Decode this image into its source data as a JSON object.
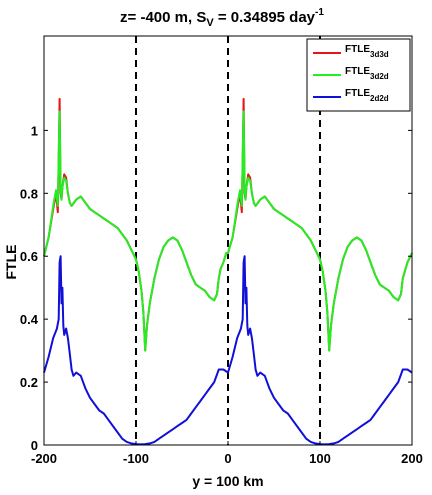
{
  "chart_data": {
    "type": "line",
    "title_main": "z= -400 m, S",
    "title_sub": "V",
    "title_rest": " = 0.34895 day",
    "title_sup": "-1",
    "xlabel": "y = 100 km",
    "ylabel": "FTLE",
    "xlim": [
      -200,
      200
    ],
    "ylim": [
      0,
      1.3
    ],
    "xticks": [
      -200,
      -100,
      0,
      100,
      200
    ],
    "yticks": [
      0,
      0.2,
      0.4,
      0.6,
      0.8,
      1
    ],
    "xtick_labels": [
      "-200",
      "-100",
      "0",
      "100",
      "200"
    ],
    "ytick_labels": [
      "0",
      "0.2",
      "0.4",
      "0.6",
      "0.8",
      "1"
    ],
    "vlines": [
      -100,
      0,
      100
    ],
    "grid": false,
    "legend_position": "top-right",
    "series": [
      {
        "name": "FTLE",
        "name_sub": "3d3d",
        "color": "#e8141c",
        "x": [
          -200,
          -195,
          -190,
          -187,
          -185,
          -184,
          -183,
          -182,
          -181,
          -180,
          -178,
          -176,
          -174,
          -172,
          -170,
          -165,
          -160,
          -155,
          -150,
          -145,
          -140,
          -135,
          -130,
          -125,
          -120,
          -115,
          -110,
          -105,
          -100,
          -97,
          -94,
          -92,
          -90,
          -88,
          -85,
          -80,
          -75,
          -70,
          -65,
          -60,
          -55,
          -50,
          -45,
          -40,
          -35,
          -30,
          -25,
          -20,
          -15,
          -12,
          -10,
          -8,
          -5,
          -2,
          0,
          2,
          5,
          10,
          13,
          15,
          16,
          17,
          18,
          19,
          20,
          22,
          24,
          26,
          28,
          30,
          35,
          40,
          45,
          50,
          55,
          60,
          65,
          70,
          75,
          80,
          85,
          90,
          95,
          100,
          103,
          106,
          108,
          110,
          112,
          115,
          120,
          125,
          130,
          135,
          140,
          145,
          150,
          155,
          160,
          165,
          170,
          175,
          180,
          185,
          188,
          190,
          195,
          200
        ],
        "y": [
          0.6,
          0.66,
          0.75,
          0.8,
          0.74,
          0.9,
          1.1,
          0.8,
          0.78,
          0.82,
          0.86,
          0.85,
          0.8,
          0.77,
          0.76,
          0.78,
          0.79,
          0.77,
          0.75,
          0.74,
          0.73,
          0.72,
          0.71,
          0.7,
          0.69,
          0.67,
          0.65,
          0.62,
          0.59,
          0.55,
          0.49,
          0.42,
          0.3,
          0.38,
          0.45,
          0.53,
          0.59,
          0.63,
          0.65,
          0.66,
          0.65,
          0.62,
          0.58,
          0.54,
          0.51,
          0.5,
          0.49,
          0.47,
          0.46,
          0.48,
          0.53,
          0.56,
          0.58,
          0.61,
          0.61,
          0.63,
          0.66,
          0.75,
          0.8,
          0.74,
          0.9,
          1.1,
          0.8,
          0.78,
          0.82,
          0.86,
          0.85,
          0.8,
          0.77,
          0.76,
          0.78,
          0.79,
          0.77,
          0.75,
          0.74,
          0.73,
          0.72,
          0.71,
          0.7,
          0.69,
          0.67,
          0.65,
          0.62,
          0.59,
          0.55,
          0.49,
          0.42,
          0.3,
          0.38,
          0.45,
          0.53,
          0.59,
          0.63,
          0.65,
          0.66,
          0.65,
          0.62,
          0.58,
          0.54,
          0.51,
          0.5,
          0.49,
          0.47,
          0.46,
          0.48,
          0.53,
          0.58,
          0.61
        ]
      },
      {
        "name": "FTLE",
        "name_sub": "3d2d",
        "color": "#22ee22",
        "x": [
          -200,
          -195,
          -190,
          -187,
          -185,
          -184,
          -183,
          -182,
          -181,
          -180,
          -178,
          -176,
          -174,
          -172,
          -170,
          -165,
          -160,
          -155,
          -150,
          -145,
          -140,
          -135,
          -130,
          -125,
          -120,
          -115,
          -110,
          -105,
          -100,
          -97,
          -94,
          -92,
          -90,
          -88,
          -85,
          -80,
          -75,
          -70,
          -65,
          -60,
          -55,
          -50,
          -45,
          -40,
          -35,
          -30,
          -25,
          -20,
          -15,
          -12,
          -10,
          -8,
          -5,
          -2,
          0,
          2,
          5,
          10,
          13,
          15,
          16,
          17,
          18,
          19,
          20,
          22,
          24,
          26,
          28,
          30,
          35,
          40,
          45,
          50,
          55,
          60,
          65,
          70,
          75,
          80,
          85,
          90,
          95,
          100,
          103,
          106,
          108,
          110,
          112,
          115,
          120,
          125,
          130,
          135,
          140,
          145,
          150,
          155,
          160,
          165,
          170,
          175,
          180,
          185,
          188,
          190,
          195,
          200
        ],
        "y": [
          0.6,
          0.66,
          0.76,
          0.81,
          0.76,
          0.92,
          1.06,
          0.82,
          0.78,
          0.82,
          0.85,
          0.84,
          0.8,
          0.77,
          0.76,
          0.78,
          0.79,
          0.77,
          0.75,
          0.74,
          0.73,
          0.72,
          0.71,
          0.7,
          0.69,
          0.67,
          0.65,
          0.62,
          0.59,
          0.55,
          0.49,
          0.42,
          0.3,
          0.38,
          0.45,
          0.53,
          0.59,
          0.63,
          0.65,
          0.66,
          0.65,
          0.62,
          0.58,
          0.54,
          0.51,
          0.5,
          0.49,
          0.47,
          0.46,
          0.48,
          0.53,
          0.56,
          0.58,
          0.61,
          0.61,
          0.63,
          0.66,
          0.76,
          0.81,
          0.76,
          0.92,
          1.06,
          0.82,
          0.78,
          0.82,
          0.85,
          0.84,
          0.8,
          0.77,
          0.76,
          0.78,
          0.79,
          0.77,
          0.75,
          0.74,
          0.73,
          0.72,
          0.71,
          0.7,
          0.69,
          0.67,
          0.65,
          0.62,
          0.59,
          0.55,
          0.49,
          0.42,
          0.3,
          0.38,
          0.45,
          0.53,
          0.59,
          0.63,
          0.65,
          0.66,
          0.65,
          0.62,
          0.58,
          0.54,
          0.51,
          0.5,
          0.49,
          0.47,
          0.46,
          0.48,
          0.53,
          0.58,
          0.61
        ]
      },
      {
        "name": "FTLE",
        "name_sub": "2d2d",
        "color": "#1010d8",
        "x": [
          -200,
          -195,
          -190,
          -186,
          -184,
          -183,
          -182,
          -181,
          -180,
          -179,
          -178,
          -176,
          -174,
          -172,
          -170,
          -168,
          -165,
          -160,
          -155,
          -150,
          -145,
          -140,
          -135,
          -130,
          -125,
          -120,
          -115,
          -110,
          -105,
          -100,
          -95,
          -90,
          -85,
          -80,
          -75,
          -70,
          -65,
          -60,
          -55,
          -50,
          -45,
          -40,
          -35,
          -30,
          -25,
          -20,
          -15,
          -10,
          -5,
          0,
          5,
          10,
          14,
          16,
          17,
          18,
          19,
          20,
          21,
          22,
          24,
          26,
          28,
          30,
          32,
          35,
          40,
          45,
          50,
          55,
          60,
          65,
          70,
          75,
          80,
          85,
          90,
          95,
          100,
          105,
          110,
          115,
          120,
          125,
          130,
          135,
          140,
          145,
          150,
          155,
          160,
          165,
          170,
          175,
          180,
          185,
          190,
          195,
          200
        ],
        "y": [
          0.23,
          0.28,
          0.34,
          0.37,
          0.4,
          0.58,
          0.6,
          0.45,
          0.5,
          0.38,
          0.35,
          0.37,
          0.34,
          0.29,
          0.24,
          0.22,
          0.23,
          0.22,
          0.18,
          0.15,
          0.13,
          0.11,
          0.1,
          0.08,
          0.06,
          0.04,
          0.02,
          0.01,
          0.005,
          0.003,
          0.002,
          0.003,
          0.005,
          0.01,
          0.02,
          0.03,
          0.04,
          0.05,
          0.06,
          0.07,
          0.08,
          0.1,
          0.12,
          0.14,
          0.16,
          0.18,
          0.2,
          0.24,
          0.24,
          0.23,
          0.28,
          0.34,
          0.37,
          0.4,
          0.58,
          0.6,
          0.45,
          0.5,
          0.38,
          0.35,
          0.37,
          0.34,
          0.29,
          0.24,
          0.22,
          0.23,
          0.22,
          0.18,
          0.15,
          0.13,
          0.11,
          0.1,
          0.08,
          0.06,
          0.04,
          0.02,
          0.01,
          0.005,
          0.003,
          0.002,
          0.003,
          0.005,
          0.01,
          0.02,
          0.03,
          0.04,
          0.05,
          0.06,
          0.07,
          0.08,
          0.1,
          0.12,
          0.14,
          0.16,
          0.18,
          0.2,
          0.24,
          0.24,
          0.23
        ]
      }
    ]
  }
}
